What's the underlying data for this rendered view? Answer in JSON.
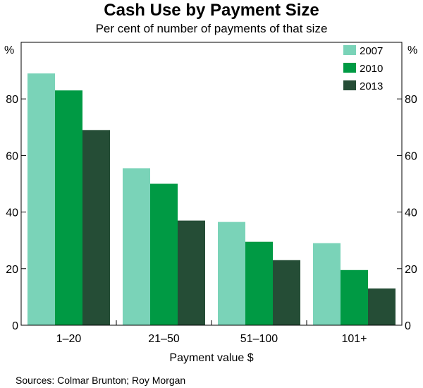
{
  "title": "Cash Use by Payment Size",
  "subtitle": "Per cent of number of payments of that size",
  "sources": "Sources:    Colmar Brunton; Roy Morgan",
  "colors": {
    "2007": "#7ad3b8",
    "2010": "#009a44",
    "2013": "#254d36",
    "axis": "#000000"
  },
  "chart_data": {
    "type": "bar",
    "title": "Cash Use by Payment Size",
    "subtitle": "Per cent of number of payments of that size",
    "xlabel": "Payment value $",
    "ylabel_left": "%",
    "ylabel_right": "%",
    "categories": [
      "1–20",
      "21–50",
      "51–100",
      "101+"
    ],
    "series": [
      {
        "name": "2007",
        "values": [
          89,
          55.5,
          36.5,
          29
        ]
      },
      {
        "name": "2010",
        "values": [
          83,
          50,
          29.5,
          19.5
        ]
      },
      {
        "name": "2013",
        "values": [
          69,
          37,
          23,
          13
        ]
      }
    ],
    "ylim": [
      0,
      100
    ],
    "yticks": [
      0,
      20,
      40,
      60,
      80
    ],
    "grid": false,
    "legend": "top-right"
  }
}
